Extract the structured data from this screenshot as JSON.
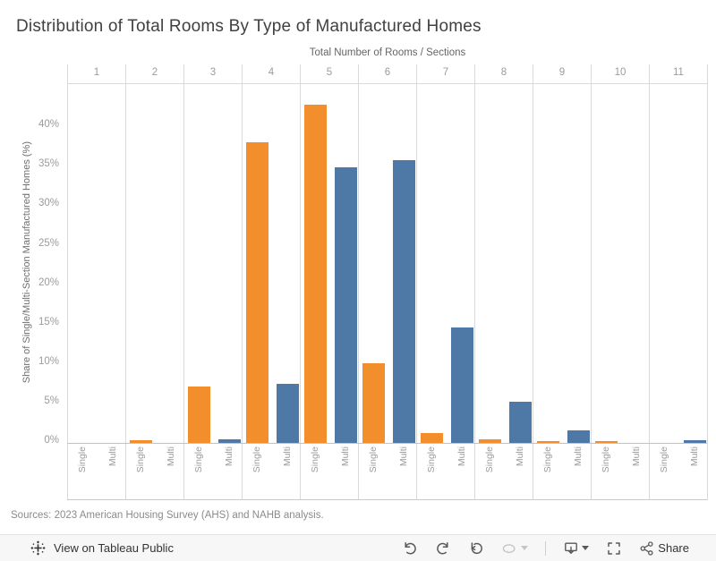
{
  "title": "Distribution of Total Rooms By Type of Manufactured Homes",
  "chart_data": {
    "type": "bar",
    "title": "Distribution of Total Rooms By Type of Manufactured Homes",
    "x_axis_label": "Total Number of Rooms / Sections",
    "y_axis_label": "Share of Single/Multi-Section Manufactured Homes (%)",
    "categories": [
      "1",
      "2",
      "3",
      "4",
      "5",
      "6",
      "7",
      "8",
      "9",
      "10",
      "11"
    ],
    "group_labels": [
      "Single",
      "Multi"
    ],
    "series": [
      {
        "name": "Single",
        "color": "#f28e2b",
        "values": [
          0,
          0.3,
          7.1,
          38.1,
          42.9,
          10.1,
          1.3,
          0.4,
          0.2,
          0.2,
          0
        ]
      },
      {
        "name": "Multi",
        "color": "#4e79a7",
        "values": [
          0,
          0,
          0.5,
          7.5,
          34.9,
          35.8,
          14.6,
          5.2,
          1.6,
          0,
          0.3
        ]
      }
    ],
    "y_ticks_percent": [
      0,
      5,
      10,
      15,
      20,
      25,
      30,
      35,
      40
    ],
    "ylim": [
      0,
      45.5
    ],
    "grid": "vertical-column-separators-only",
    "legend": "none"
  },
  "sources_note": "Sources: 2023 American Housing Survey (AHS) and NAHB analysis.",
  "toolbar": {
    "view_link": "View on Tableau Public",
    "share_label": "Share",
    "icons": [
      "tableau-logo",
      "undo",
      "redo",
      "replay",
      "refresh",
      "download-view",
      "fullscreen",
      "share"
    ]
  },
  "colors": {
    "single_bar": "#f28e2b",
    "multi_bar": "#4e79a7",
    "axis_text": "#9b9b9b",
    "title_text": "#414141",
    "toolbar_bg": "#f7f7f7"
  }
}
